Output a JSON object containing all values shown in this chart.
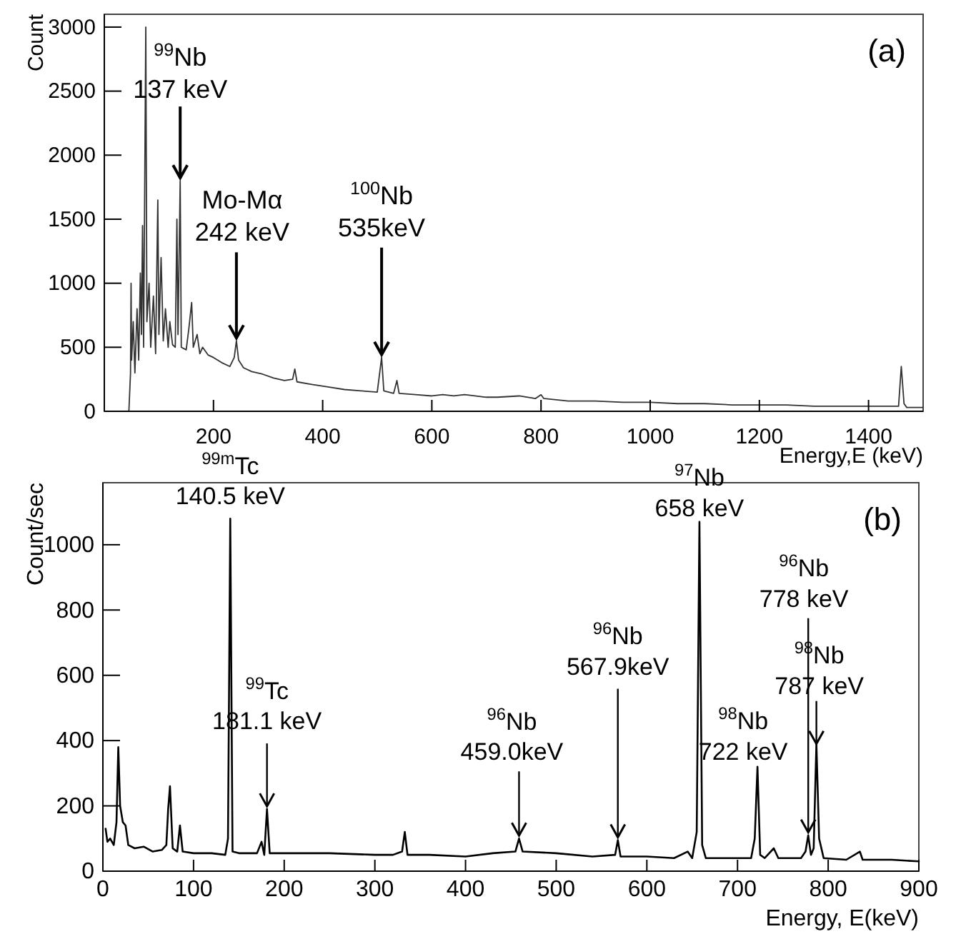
{
  "chart_data": [
    {
      "type": "line",
      "ylabel": "Count",
      "xlabel": "Energy,E (keV)",
      "xlim": [
        0,
        1500
      ],
      "ylim": [
        0,
        3100
      ],
      "xticks": [
        200,
        400,
        600,
        800,
        1000,
        1200,
        1400
      ],
      "yticks": [
        0,
        500,
        1000,
        1500,
        2000,
        2500,
        3000
      ],
      "series": [
        {
          "color": "#333333",
          "x": [
            45,
            48,
            49,
            50,
            53,
            56,
            60,
            63,
            66,
            68,
            70,
            72,
            76,
            78,
            82,
            85,
            90,
            94,
            98,
            100,
            104,
            108,
            112,
            117,
            120,
            125,
            130,
            133,
            135,
            139,
            141,
            150,
            155,
            160,
            163,
            170,
            175,
            180,
            190,
            200,
            215,
            230,
            238,
            242,
            246,
            255,
            270,
            290,
            310,
            330,
            345,
            349,
            353,
            380,
            410,
            440,
            470,
            500,
            508,
            512,
            530,
            536,
            540,
            570,
            600,
            620,
            640,
            660,
            700,
            720,
            760,
            790,
            800,
            805,
            850,
            900,
            950,
            1000,
            1050,
            1100,
            1150,
            1200,
            1250,
            1300,
            1350,
            1400,
            1440,
            1455,
            1460,
            1465,
            1470,
            1500
          ],
          "values": [
            0,
            300,
            1000,
            400,
            700,
            300,
            800,
            400,
            1080,
            600,
            1450,
            500,
            3000,
            700,
            1000,
            500,
            900,
            450,
            1650,
            600,
            1200,
            550,
            800,
            500,
            700,
            520,
            500,
            1500,
            600,
            1800,
            500,
            480,
            650,
            850,
            500,
            600,
            450,
            500,
            440,
            420,
            380,
            350,
            420,
            550,
            400,
            340,
            310,
            290,
            260,
            240,
            250,
            330,
            230,
            210,
            190,
            170,
            160,
            150,
            420,
            160,
            140,
            240,
            140,
            130,
            120,
            130,
            120,
            130,
            110,
            110,
            120,
            100,
            130,
            100,
            80,
            80,
            70,
            70,
            60,
            60,
            50,
            50,
            50,
            40,
            40,
            40,
            40,
            40,
            350,
            60,
            30,
            30
          ]
        }
      ],
      "annotations": [
        "(a)",
        {
          "text": "$^{99}$Nb\n137 keV",
          "x": 139,
          "y": 1800
        },
        {
          "text": "Mo-Mα\n242 keV",
          "x": 242,
          "y": 550
        },
        {
          "text": "$^{100}$Nb\n535keV",
          "x": 508,
          "y": 420
        }
      ]
    },
    {
      "type": "line",
      "ylabel": "Count/sec",
      "xlabel": "Energy, E(keV)",
      "xlim": [
        0,
        900
      ],
      "ylim": [
        0,
        1190
      ],
      "xticks": [
        0,
        100,
        200,
        300,
        400,
        500,
        600,
        700,
        800,
        900
      ],
      "yticks": [
        0,
        200,
        400,
        600,
        800,
        1000
      ],
      "series": [
        {
          "color": "#000000",
          "x": [
            3,
            5,
            8,
            12,
            15,
            17,
            19,
            22,
            25,
            28,
            35,
            45,
            55,
            65,
            70,
            72,
            74,
            77,
            82,
            85,
            88,
            100,
            120,
            135,
            138,
            140.5,
            143,
            150,
            170,
            175,
            178,
            181,
            184,
            200,
            250,
            300,
            320,
            330,
            333,
            336,
            360,
            400,
            430,
            455,
            459,
            463,
            500,
            540,
            565,
            568,
            571,
            600,
            630,
            645,
            650,
            655,
            658,
            661,
            665,
            700,
            715,
            719,
            722,
            725,
            730,
            740,
            745,
            770,
            775,
            778,
            781,
            784,
            787,
            790,
            795,
            820,
            835,
            838,
            870,
            900
          ],
          "values": [
            130,
            90,
            100,
            80,
            150,
            380,
            200,
            150,
            140,
            80,
            70,
            75,
            60,
            65,
            80,
            190,
            260,
            70,
            60,
            140,
            60,
            55,
            55,
            50,
            100,
            1080,
            60,
            55,
            55,
            90,
            50,
            190,
            55,
            55,
            55,
            50,
            50,
            60,
            120,
            50,
            50,
            45,
            55,
            60,
            100,
            60,
            55,
            45,
            50,
            95,
            45,
            45,
            40,
            60,
            40,
            120,
            1070,
            80,
            40,
            40,
            40,
            100,
            320,
            50,
            40,
            70,
            40,
            40,
            60,
            110,
            50,
            70,
            390,
            100,
            40,
            35,
            60,
            35,
            35,
            30
          ]
        }
      ],
      "annotations": [
        "(b)",
        {
          "text": "$^{99m}$Tc\n140.5 keV",
          "x": 140.5,
          "y": 1080
        },
        {
          "text": "$^{99}$Tc\n181.1 keV",
          "x": 181,
          "y": 190
        },
        {
          "text": "$^{96}$Nb\n459.0keV",
          "x": 459,
          "y": 100
        },
        {
          "text": "$^{96}$Nb\n567.9keV",
          "x": 568,
          "y": 95
        },
        {
          "text": "$^{97}$Nb\n658 keV",
          "x": 658,
          "y": 1070
        },
        {
          "text": "$^{98}$Nb\n722 keV",
          "x": 722,
          "y": 320
        },
        {
          "text": "$^{96}$Nb\n778 keV",
          "x": 778,
          "y": 110
        },
        {
          "text": "$^{98}$Nb\n787 keV",
          "x": 787,
          "y": 390
        }
      ]
    }
  ]
}
